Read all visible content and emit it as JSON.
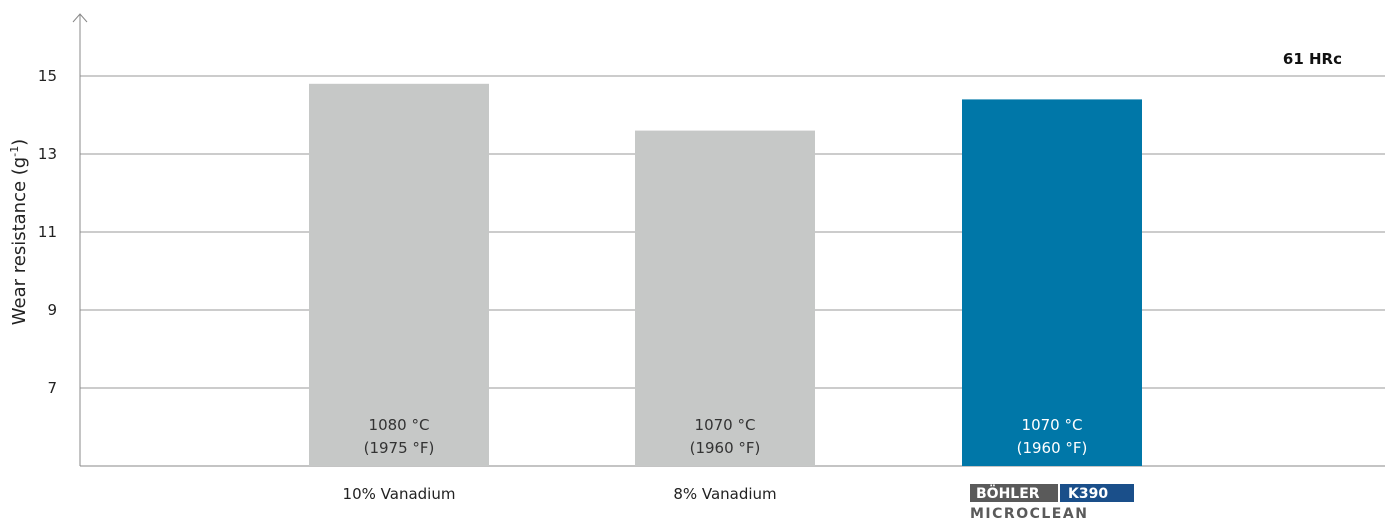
{
  "chart_data": {
    "type": "bar",
    "ylabel": "Wear resistance (g",
    "ylabel_sup": "-1",
    "ylabel_close": ")",
    "ylim": [
      5,
      18
    ],
    "yticks": [
      7,
      9,
      11,
      13,
      15
    ],
    "grid": true,
    "annotation": "61 HRc",
    "categories": [
      "10% Vanadium",
      "8% Vanadium",
      ""
    ],
    "values": [
      14.8,
      13.6,
      14.4
    ],
    "bar_labels": [
      [
        "1080 °C",
        "(1975 °F)"
      ],
      [
        "1070 °C",
        "(1960 °F)"
      ],
      [
        "1070 °C",
        "(1960 °F)"
      ]
    ],
    "colors": [
      "#c6c8c7",
      "#c6c8c7",
      "#0077a8"
    ],
    "label_colors": [
      "#333333",
      "#333333",
      "#ffffff"
    ],
    "logo": {
      "text_left": "BÖHLER",
      "text_right": "K390",
      "subtext": "MICROCLEAN",
      "dark_color": "#5a5a5a",
      "blue_color": "#1a4f8a"
    }
  }
}
